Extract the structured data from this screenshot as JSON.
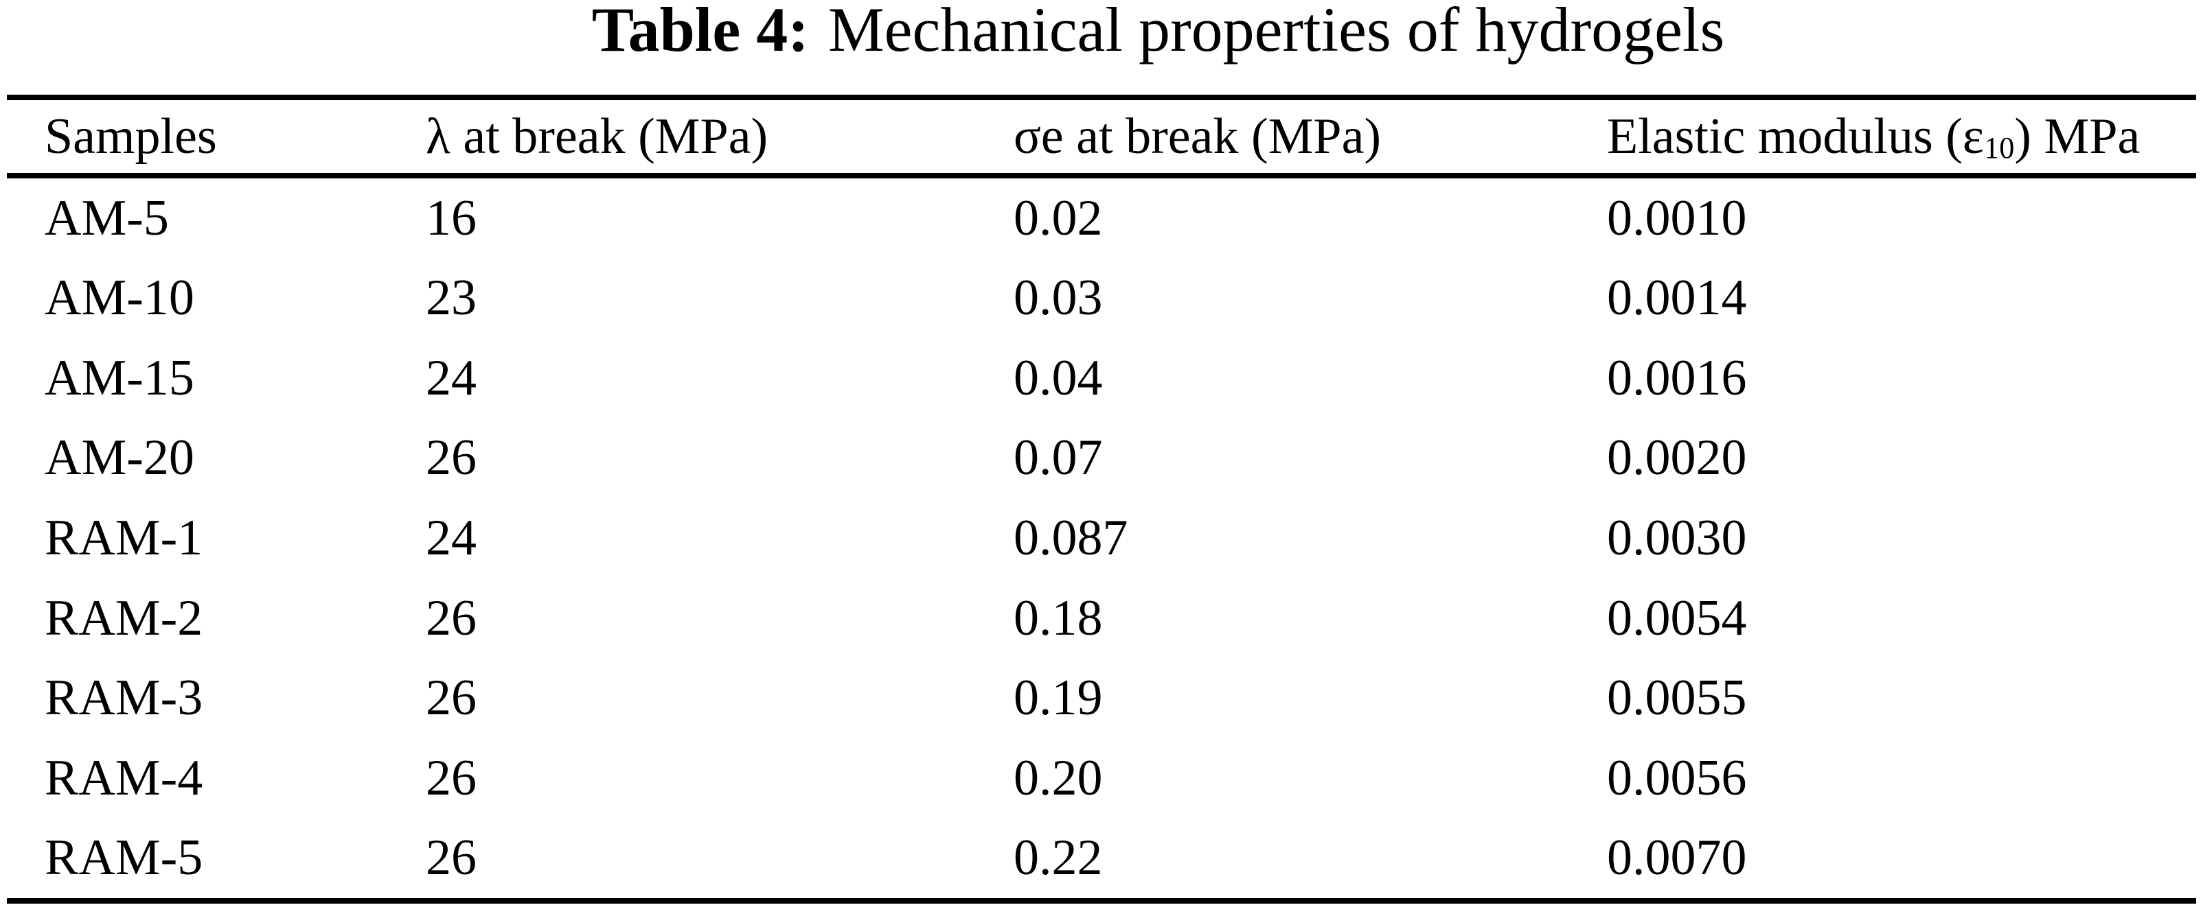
{
  "caption": {
    "label": "Table 4:",
    "text": "Mechanical properties of hydrogels"
  },
  "table": {
    "columns": [
      {
        "label": "Samples"
      },
      {
        "label": "λ at break (MPa)"
      },
      {
        "label": "σe at break (MPa)"
      },
      {
        "label_prefix": "Elastic modulus (ε",
        "label_sub": "10",
        "label_suffix": ") MPa"
      }
    ],
    "rows": [
      {
        "sample": "AM-5",
        "lambda": "16",
        "sigma": "0.02",
        "modulus": "0.0010"
      },
      {
        "sample": "AM-10",
        "lambda": "23",
        "sigma": "0.03",
        "modulus": "0.0014"
      },
      {
        "sample": "AM-15",
        "lambda": "24",
        "sigma": "0.04",
        "modulus": "0.0016"
      },
      {
        "sample": "AM-20",
        "lambda": "26",
        "sigma": "0.07",
        "modulus": "0.0020"
      },
      {
        "sample": "RAM-1",
        "lambda": "24",
        "sigma": "0.087",
        "modulus": "0.0030"
      },
      {
        "sample": "RAM-2",
        "lambda": "26",
        "sigma": "0.18",
        "modulus": "0.0054"
      },
      {
        "sample": "RAM-3",
        "lambda": "26",
        "sigma": "0.19",
        "modulus": "0.0055"
      },
      {
        "sample": "RAM-4",
        "lambda": "26",
        "sigma": "0.20",
        "modulus": "0.0056"
      },
      {
        "sample": "RAM-5",
        "lambda": "26",
        "sigma": "0.22",
        "modulus": "0.0070"
      }
    ]
  },
  "colors": {
    "text": "#000000",
    "background": "#ffffff",
    "rule": "#000000"
  }
}
